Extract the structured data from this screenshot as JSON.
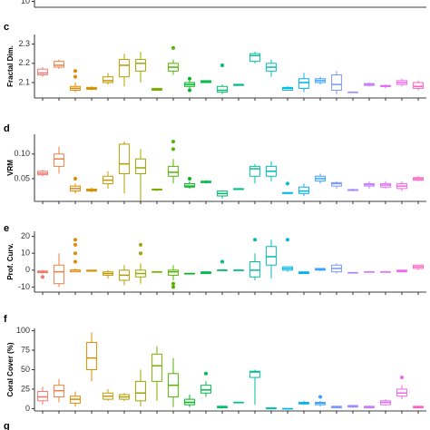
{
  "chart_data": [
    {
      "type": "box",
      "ylim": [
        9.9,
        10.1
      ],
      "yticks": [
        10
      ]
    },
    {
      "type": "box",
      "panel": "c",
      "ylabel": "Fractal Dim.",
      "ylim": [
        2.02,
        2.35
      ],
      "yticks": [
        2.1,
        2.2,
        2.3
      ],
      "colors": [
        "#F8766D",
        "#EE8042",
        "#E38900",
        "#D59100",
        "#C49A00",
        "#B09F00",
        "#99A800",
        "#7CAE00",
        "#53B400",
        "#00B81F",
        "#00BB4E",
        "#00BE6C",
        "#00C086",
        "#00C19F",
        "#00BFB4",
        "#00B8E5",
        "#00B0F6",
        "#35A2FF",
        "#7997FF",
        "#A58AFF",
        "#C77CFF",
        "#E16DF5",
        "#F066EA",
        "#FF61C3"
      ],
      "boxes": [
        [
          2.13,
          2.14,
          2.15,
          2.17,
          2.18
        ],
        [
          2.17,
          2.18,
          2.19,
          2.21,
          2.22
        ],
        [
          2.05,
          2.06,
          2.07,
          2.08,
          2.1
        ],
        [
          2.06,
          2.065,
          2.07,
          2.075,
          2.08
        ],
        [
          2.09,
          2.1,
          2.11,
          2.13,
          2.15
        ],
        [
          2.08,
          2.13,
          2.19,
          2.22,
          2.25
        ],
        [
          2.1,
          2.16,
          2.2,
          2.22,
          2.26
        ],
        [
          2.06,
          2.06,
          2.065,
          2.07,
          2.07
        ],
        [
          2.14,
          2.16,
          2.18,
          2.2,
          2.22
        ],
        [
          2.07,
          2.08,
          2.09,
          2.1,
          2.11
        ],
        [
          2.1,
          2.1,
          2.105,
          2.11,
          2.11
        ],
        [
          2.04,
          2.05,
          2.06,
          2.08,
          2.09
        ],
        [
          2.085,
          2.085,
          2.09,
          2.09,
          2.09
        ],
        [
          2.2,
          2.21,
          2.24,
          2.25,
          2.26
        ],
        [
          2.13,
          2.16,
          2.18,
          2.2,
          2.22
        ],
        [
          2.06,
          2.06,
          2.07,
          2.075,
          2.08
        ],
        [
          2.05,
          2.07,
          2.1,
          2.12,
          2.15
        ],
        [
          2.09,
          2.1,
          2.11,
          2.12,
          2.13
        ],
        [
          2.04,
          2.06,
          2.09,
          2.14,
          2.16
        ],
        [
          2.05,
          2.05,
          2.05,
          2.05,
          2.05
        ],
        [
          2.08,
          2.085,
          2.09,
          2.095,
          2.1
        ],
        [
          2.07,
          2.08,
          2.08,
          2.085,
          2.09
        ],
        [
          2.08,
          2.09,
          2.1,
          2.11,
          2.12
        ],
        [
          2.06,
          2.07,
          2.08,
          2.1,
          2.11
        ]
      ],
      "outliers": [
        [],
        [],
        [
          2.13,
          2.16
        ],
        [],
        [],
        [],
        [],
        [],
        [
          2.28
        ],
        [
          2.12,
          2.06
        ],
        [],
        [
          2.19
        ],
        [],
        [],
        [],
        [],
        [],
        [],
        [],
        [],
        [],
        [],
        [],
        []
      ]
    },
    {
      "type": "box",
      "panel": "d",
      "ylabel": "VRM",
      "ylim": [
        0.004,
        0.14
      ],
      "yticks": [
        0.05,
        {
          "value": 0.1,
          "label": "0.10"
        }
      ],
      "colors": [
        "#F8766D",
        "#EE8042",
        "#E38900",
        "#D59100",
        "#C49A00",
        "#B09F00",
        "#99A800",
        "#7CAE00",
        "#53B400",
        "#00B81F",
        "#00BB4E",
        "#00BE6C",
        "#00C086",
        "#00C19F",
        "#00BFB4",
        "#00B8E5",
        "#00B0F6",
        "#35A2FF",
        "#7997FF",
        "#A58AFF",
        "#C77CFF",
        "#E16DF5",
        "#F066EA",
        "#FF61C3"
      ],
      "boxes": [
        [
          0.055,
          0.058,
          0.061,
          0.065,
          0.068
        ],
        [
          0.06,
          0.075,
          0.09,
          0.1,
          0.115
        ],
        [
          0.02,
          0.025,
          0.03,
          0.035,
          0.04
        ],
        [
          0.022,
          0.025,
          0.027,
          0.029,
          0.032
        ],
        [
          0.03,
          0.04,
          0.047,
          0.055,
          0.065
        ],
        [
          0.02,
          0.06,
          0.08,
          0.12,
          0.125
        ],
        [
          0.005,
          0.06,
          0.072,
          0.09,
          0.11
        ],
        [
          0.025,
          0.027,
          0.028,
          0.029,
          0.03
        ],
        [
          0.04,
          0.055,
          0.063,
          0.075,
          0.09
        ],
        [
          0.03,
          0.033,
          0.035,
          0.04,
          0.045
        ],
        [
          0.04,
          0.042,
          0.043,
          0.045,
          0.047
        ],
        [
          0.01,
          0.015,
          0.02,
          0.025,
          0.027
        ],
        [
          0.028,
          0.028,
          0.029,
          0.03,
          0.03
        ],
        [
          0.04,
          0.055,
          0.07,
          0.075,
          0.08
        ],
        [
          0.045,
          0.055,
          0.065,
          0.075,
          0.085
        ],
        [
          0.02,
          0.02,
          0.021,
          0.022,
          0.022
        ],
        [
          0.015,
          0.02,
          0.025,
          0.033,
          0.04
        ],
        [
          0.04,
          0.045,
          0.05,
          0.055,
          0.06
        ],
        [
          0.03,
          0.035,
          0.04,
          0.042,
          0.045
        ],
        [
          0.025,
          0.026,
          0.027,
          0.028,
          0.03
        ],
        [
          0.03,
          0.035,
          0.038,
          0.04,
          0.045
        ],
        [
          0.03,
          0.033,
          0.037,
          0.04,
          0.045
        ],
        [
          0.025,
          0.03,
          0.035,
          0.04,
          0.045
        ],
        [
          0.045,
          0.047,
          0.05,
          0.052,
          0.055
        ]
      ],
      "outliers": [
        [],
        [],
        [
          0.05
        ],
        [],
        [],
        [],
        [],
        [],
        [
          0.11,
          0.125
        ],
        [
          0.05
        ],
        [],
        [],
        [],
        [],
        [],
        [
          0.04
        ],
        [],
        [],
        [],
        [],
        [],
        [],
        [],
        []
      ]
    },
    {
      "type": "box",
      "panel": "e",
      "ylabel": "Prof. Curv.",
      "ylim": [
        -13,
        23
      ],
      "yticks": [
        -10,
        0,
        10,
        20
      ],
      "colors": [
        "#F8766D",
        "#EE8042",
        "#E38900",
        "#D59100",
        "#C49A00",
        "#B09F00",
        "#99A800",
        "#7CAE00",
        "#53B400",
        "#00B81F",
        "#00BB4E",
        "#00BE6C",
        "#00C086",
        "#00C19F",
        "#00BFB4",
        "#00B8E5",
        "#00B0F6",
        "#35A2FF",
        "#7997FF",
        "#A58AFF",
        "#C77CFF",
        "#E16DF5",
        "#F066EA",
        "#FF61C3"
      ],
      "boxes": [
        [
          -2,
          -1.5,
          -1,
          -0.5,
          0
        ],
        [
          -10,
          -8,
          -1,
          3,
          10
        ],
        [
          -1,
          -1,
          0,
          0,
          1
        ],
        [
          -1,
          -0.5,
          -0.5,
          0,
          0
        ],
        [
          -5,
          -3,
          -2,
          -1,
          0
        ],
        [
          -9,
          -6,
          -3,
          0,
          3
        ],
        [
          -8,
          -4,
          -2,
          0,
          4
        ],
        [
          -1,
          -1,
          -1,
          -1,
          -1
        ],
        [
          -6,
          -3,
          -1,
          0,
          3
        ],
        [
          -2,
          -2,
          -2,
          -2,
          -2
        ],
        [
          -2,
          -2,
          -1.5,
          -1,
          -1
        ],
        [
          -0.5,
          0,
          0,
          0,
          0.5
        ],
        [
          0,
          0,
          0,
          0,
          0
        ],
        [
          -6,
          -4,
          0,
          5,
          10
        ],
        [
          -5,
          3,
          8,
          14,
          18
        ],
        [
          -1,
          0,
          1,
          2,
          2
        ],
        [
          -2,
          -2,
          -1.5,
          -1,
          -1
        ],
        [
          -0.5,
          0,
          0.5,
          1,
          1
        ],
        [
          -2,
          -1,
          1,
          3,
          4
        ],
        [
          -1.5,
          -1.5,
          -1.5,
          -1.5,
          -1.5
        ],
        [
          -1,
          -1,
          -1,
          -1,
          -1
        ],
        [
          -1,
          -1,
          -1,
          -1,
          -1
        ],
        [
          -1,
          -1,
          -0.5,
          0,
          0
        ],
        [
          0,
          1,
          2,
          3,
          3
        ]
      ],
      "outliers": [
        [
          -4
        ],
        [],
        [
          5,
          10,
          15,
          18
        ],
        [],
        [],
        [],
        [
          10,
          15
        ],
        [],
        [
          -10,
          -8
        ],
        [],
        [],
        [
          5
        ],
        [],
        [
          18
        ],
        [],
        [
          18
        ],
        [],
        [],
        [],
        [],
        [],
        [],
        [],
        []
      ]
    },
    {
      "type": "box",
      "panel": "f",
      "ylabel": "Coral Cover (%)",
      "ylim": [
        -3,
        103
      ],
      "yticks": [
        0,
        25,
        50,
        75,
        100
      ],
      "colors": [
        "#F8766D",
        "#EE8042",
        "#E38900",
        "#D59100",
        "#C49A00",
        "#B09F00",
        "#99A800",
        "#7CAE00",
        "#53B400",
        "#00B81F",
        "#00BB4E",
        "#00BE6C",
        "#00C086",
        "#00C19F",
        "#00BFB4",
        "#00B8E5",
        "#00B0F6",
        "#35A2FF",
        "#7997FF",
        "#A58AFF",
        "#C77CFF",
        "#E16DF5",
        "#F066EA",
        "#FF61C3"
      ],
      "boxes": [
        [
          5,
          10,
          15,
          22,
          28
        ],
        [
          8,
          15,
          23,
          30,
          38
        ],
        [
          3,
          7,
          12,
          16,
          22
        ],
        [
          35,
          50,
          65,
          85,
          98
        ],
        [
          10,
          12,
          16,
          20,
          25
        ],
        [
          10,
          12,
          15,
          18,
          20
        ],
        [
          3,
          10,
          20,
          35,
          50
        ],
        [
          10,
          35,
          55,
          70,
          80
        ],
        [
          2,
          15,
          30,
          45,
          65
        ],
        [
          2,
          5,
          8,
          12,
          18
        ],
        [
          15,
          20,
          24,
          30,
          35
        ],
        [
          0,
          1,
          2,
          3,
          4
        ],
        [
          8,
          8,
          8,
          8,
          8
        ],
        [
          5,
          40,
          47,
          48,
          50
        ],
        [
          0,
          0,
          0,
          1,
          1
        ],
        [
          0,
          0,
          0,
          0,
          0
        ],
        [
          5,
          6,
          7,
          8,
          10
        ],
        [
          3,
          5,
          7,
          8,
          10
        ],
        [
          0,
          1,
          2,
          3,
          4
        ],
        [
          1,
          2,
          3,
          4,
          5
        ],
        [
          1,
          1,
          2,
          3,
          4
        ],
        [
          4,
          5,
          8,
          10,
          12
        ],
        [
          12,
          16,
          20,
          25,
          30
        ],
        [
          0,
          1,
          2,
          3,
          3
        ]
      ],
      "outliers": [
        [],
        [],
        [],
        [],
        [],
        [],
        [],
        [],
        [],
        [],
        [
          45
        ],
        [],
        [],
        [],
        [],
        [],
        [],
        [
          15
        ],
        [],
        [],
        [],
        [],
        [
          40
        ],
        []
      ]
    },
    {
      "type": "box",
      "panel": "g"
    }
  ]
}
